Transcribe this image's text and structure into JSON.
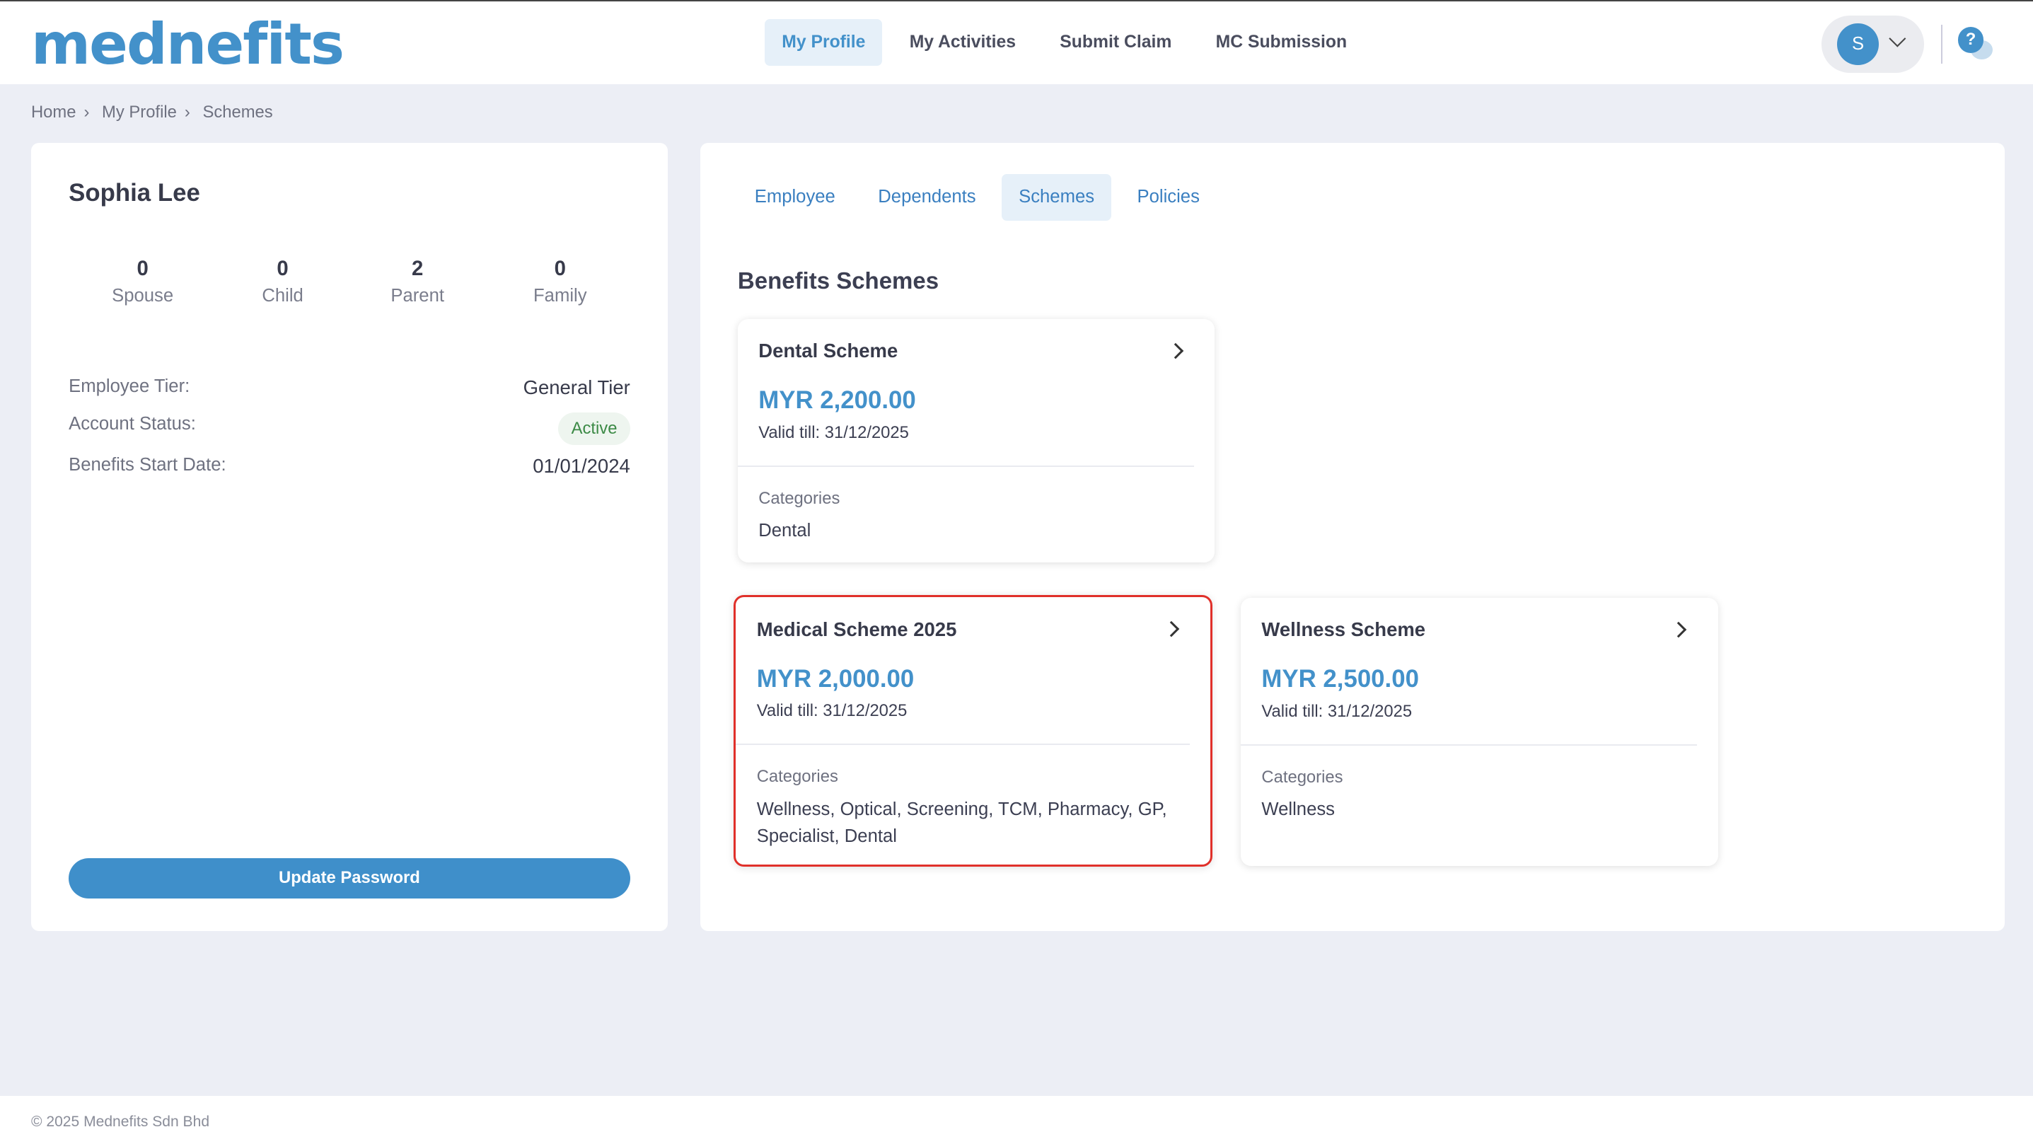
{
  "header": {
    "logo": "mednefits",
    "nav": [
      "My Profile",
      "My Activities",
      "Submit Claim",
      "MC Submission"
    ],
    "active_nav": "My Profile",
    "avatar_initial": "S",
    "help_icon": "?"
  },
  "breadcrumb": [
    "Home",
    "My Profile",
    "Schemes"
  ],
  "profile": {
    "name": "Sophia Lee",
    "stats": [
      {
        "value": "0",
        "label": "Spouse"
      },
      {
        "value": "0",
        "label": "Child"
      },
      {
        "value": "2",
        "label": "Parent"
      },
      {
        "value": "0",
        "label": "Family"
      }
    ],
    "tier_label": "Employee Tier:",
    "tier": "General Tier",
    "status_label": "Account Status:",
    "status": "Active",
    "start_label": "Benefits Start Date:",
    "start": "01/01/2024",
    "update_password": "Update Password"
  },
  "tabs": [
    "Employee",
    "Dependents",
    "Schemes",
    "Policies"
  ],
  "active_tab": "Schemes",
  "section_title": "Benefits Schemes",
  "categories_label": "Categories",
  "schemes": [
    {
      "title": "Dental Scheme",
      "amount": "MYR 2,200.00",
      "valid": "Valid till: 31/12/2025",
      "categories": "Dental"
    },
    {
      "title": "Medical Scheme 2025",
      "amount": "MYR 2,000.00",
      "valid": "Valid till: 31/12/2025",
      "categories": "Wellness, Optical, Screening, TCM, Pharmacy, GP, Specialist, Dental",
      "highlighted": true
    },
    {
      "title": "Wellness Scheme",
      "amount": "MYR 2,500.00",
      "valid": "Valid till: 31/12/2025",
      "categories": "Wellness"
    }
  ],
  "colors": {
    "brand": "#4391ca",
    "highlight": "#e0302a",
    "active_badge": "#3c8a46"
  },
  "footer": "© 2025 Mednefits Sdn Bhd"
}
